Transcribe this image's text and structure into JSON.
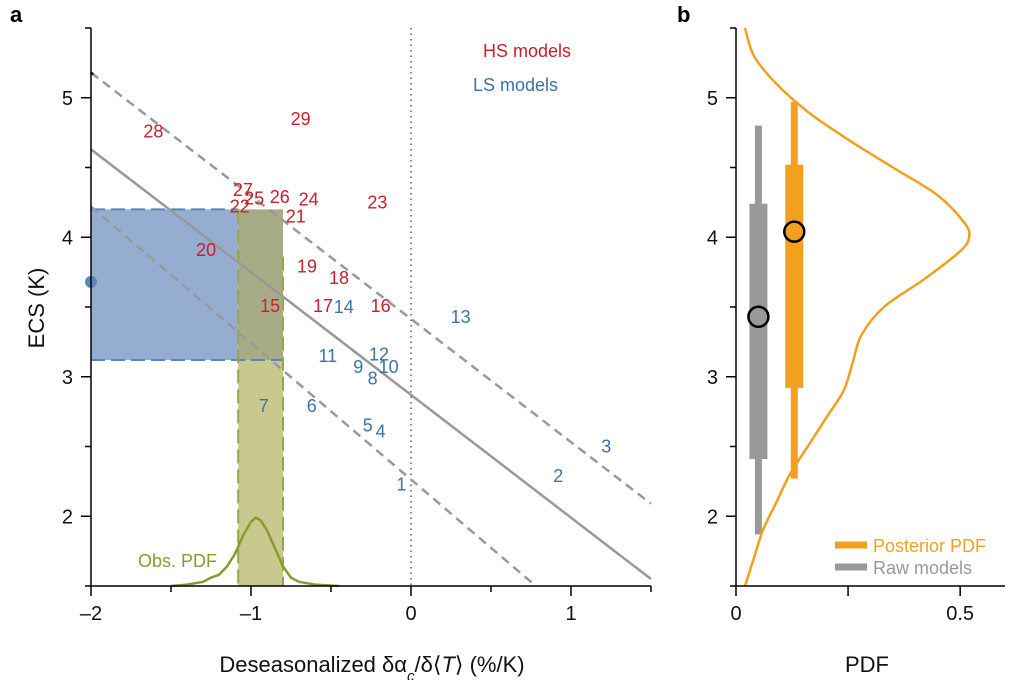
{
  "colors": {
    "hs": "#c8202a",
    "ls": "#3a73a8",
    "regression": "#999999",
    "obs": "#8c9a2c",
    "posterior": "#f2a01e",
    "raw": "#999999"
  },
  "chart_data": [
    {
      "type": "scatter",
      "panel": "a",
      "xlabel": "Deseasonalized δα/δ⟨T⟩ (%/K)",
      "ylabel": "ECS (K)",
      "xlim": [
        -2,
        1.5
      ],
      "ylim": [
        1.5,
        5.5
      ],
      "xticks": [
        -2,
        -1,
        0,
        1
      ],
      "xtick_labels": [
        "–2",
        "–1",
        "0",
        "1"
      ],
      "yticks": [
        2,
        3,
        4,
        5
      ],
      "ytick_labels": [
        "2",
        "3",
        "4",
        "5"
      ],
      "legend": [
        {
          "label": "HS models",
          "color_key": "hs"
        },
        {
          "label": "LS models",
          "color_key": "ls"
        }
      ],
      "series": [
        {
          "name": "HS models",
          "color_key": "hs",
          "points": [
            {
              "label": "15",
              "x": -0.88,
              "y": 3.5
            },
            {
              "label": "16",
              "x": -0.19,
              "y": 3.5
            },
            {
              "label": "17",
              "x": -0.55,
              "y": 3.5
            },
            {
              "label": "18",
              "x": -0.45,
              "y": 3.7
            },
            {
              "label": "19",
              "x": -0.65,
              "y": 3.78
            },
            {
              "label": "20",
              "x": -1.28,
              "y": 3.9
            },
            {
              "label": "21",
              "x": -0.72,
              "y": 4.14
            },
            {
              "label": "22",
              "x": -1.07,
              "y": 4.21
            },
            {
              "label": "23",
              "x": -0.21,
              "y": 4.24
            },
            {
              "label": "24",
              "x": -0.64,
              "y": 4.26
            },
            {
              "label": "25",
              "x": -0.98,
              "y": 4.27
            },
            {
              "label": "26",
              "x": -0.82,
              "y": 4.28
            },
            {
              "label": "27",
              "x": -1.05,
              "y": 4.33
            },
            {
              "label": "28",
              "x": -1.61,
              "y": 4.75
            },
            {
              "label": "29",
              "x": -0.69,
              "y": 4.84
            }
          ]
        },
        {
          "name": "LS models",
          "color_key": "ls",
          "points": [
            {
              "label": "1",
              "x": -0.06,
              "y": 2.22
            },
            {
              "label": "2",
              "x": 0.92,
              "y": 2.28
            },
            {
              "label": "3",
              "x": 1.22,
              "y": 2.49
            },
            {
              "label": "4",
              "x": -0.19,
              "y": 2.6
            },
            {
              "label": "5",
              "x": -0.27,
              "y": 2.64
            },
            {
              "label": "6",
              "x": -0.62,
              "y": 2.78
            },
            {
              "label": "7",
              "x": -0.92,
              "y": 2.78
            },
            {
              "label": "8",
              "x": -0.24,
              "y": 2.98
            },
            {
              "label": "9",
              "x": -0.33,
              "y": 3.06
            },
            {
              "label": "10",
              "x": -0.14,
              "y": 3.06
            },
            {
              "label": "11",
              "x": -0.52,
              "y": 3.14
            },
            {
              "label": "12",
              "x": -0.2,
              "y": 3.15
            },
            {
              "label": "13",
              "x": 0.31,
              "y": 3.42
            },
            {
              "label": "14",
              "x": -0.42,
              "y": 3.49
            }
          ]
        }
      ],
      "regression_line": [
        [
          -2.0,
          4.63
        ],
        [
          1.5,
          1.55
        ]
      ],
      "confidence_bounds": [
        [
          [
            -2.0,
            5.18
          ],
          [
            1.5,
            2.09
          ]
        ],
        [
          [
            -2.0,
            4.22
          ],
          [
            0.78,
            1.5
          ]
        ]
      ],
      "zero_line_x": 0,
      "obs_constraint": {
        "x_range": [
          -1.08,
          -0.8
        ],
        "y_range": [
          3.12,
          4.2
        ],
        "estimate_y": 3.68
      },
      "obs_pdf": {
        "label": "Obs. PDF",
        "x": [
          -1.5,
          -1.4,
          -1.3,
          -1.25,
          -1.2,
          -1.15,
          -1.1,
          -1.05,
          -1.0,
          -0.97,
          -0.94,
          -0.9,
          -0.85,
          -0.8,
          -0.75,
          -0.7,
          -0.6,
          -0.45
        ],
        "y": [
          1.5,
          1.51,
          1.53,
          1.56,
          1.58,
          1.64,
          1.73,
          1.86,
          1.96,
          1.99,
          1.97,
          1.9,
          1.77,
          1.64,
          1.56,
          1.53,
          1.51,
          1.5
        ]
      }
    },
    {
      "type": "line",
      "panel": "b",
      "xlabel": "PDF",
      "xlim": [
        0,
        0.6
      ],
      "ylim": [
        1.5,
        5.5
      ],
      "xticks": [
        0,
        0.25,
        0.5
      ],
      "xtick_labels": [
        "0",
        "",
        "0.5"
      ],
      "yticks": [
        2,
        3,
        4,
        5
      ],
      "ytick_labels": [
        "2",
        "3",
        "4",
        "5"
      ],
      "posterior_pdf": {
        "y": [
          1.5,
          1.7,
          1.9,
          2.1,
          2.3,
          2.5,
          2.7,
          2.9,
          3.1,
          3.3,
          3.5,
          3.7,
          3.9,
          4.0,
          4.1,
          4.3,
          4.5,
          4.7,
          4.9,
          5.1,
          5.3,
          5.5
        ],
        "x": [
          0.02,
          0.04,
          0.06,
          0.09,
          0.12,
          0.16,
          0.2,
          0.24,
          0.26,
          0.28,
          0.33,
          0.42,
          0.5,
          0.52,
          0.51,
          0.45,
          0.35,
          0.25,
          0.16,
          0.09,
          0.04,
          0.02
        ]
      },
      "legend": [
        {
          "label": "Posterior PDF",
          "color_key": "posterior"
        },
        {
          "label": "Raw models",
          "color_key": "raw"
        }
      ],
      "raw_models": {
        "x": 0.05,
        "range": [
          1.87,
          4.8
        ],
        "iqr": [
          2.41,
          4.24
        ],
        "median": 3.43
      },
      "posterior": {
        "x": 0.13,
        "range": [
          2.27,
          4.97
        ],
        "iqr": [
          2.92,
          4.52
        ],
        "median": 4.04
      }
    }
  ],
  "panel_a": {
    "letter": "a",
    "xlabel_main": "Deseasonalized δα",
    "xlabel_sub": "c",
    "xlabel_mid": "/δ⟨",
    "xlabel_T": "T",
    "xlabel_end": "⟩ (%/K)",
    "ylabel": "ECS (K)",
    "legend_hs": "HS models",
    "legend_ls": "LS models",
    "obs_label": "Obs. PDF"
  },
  "panel_b": {
    "letter": "b",
    "xlabel": "PDF",
    "legend_posterior": "Posterior PDF",
    "legend_raw": "Raw models"
  }
}
